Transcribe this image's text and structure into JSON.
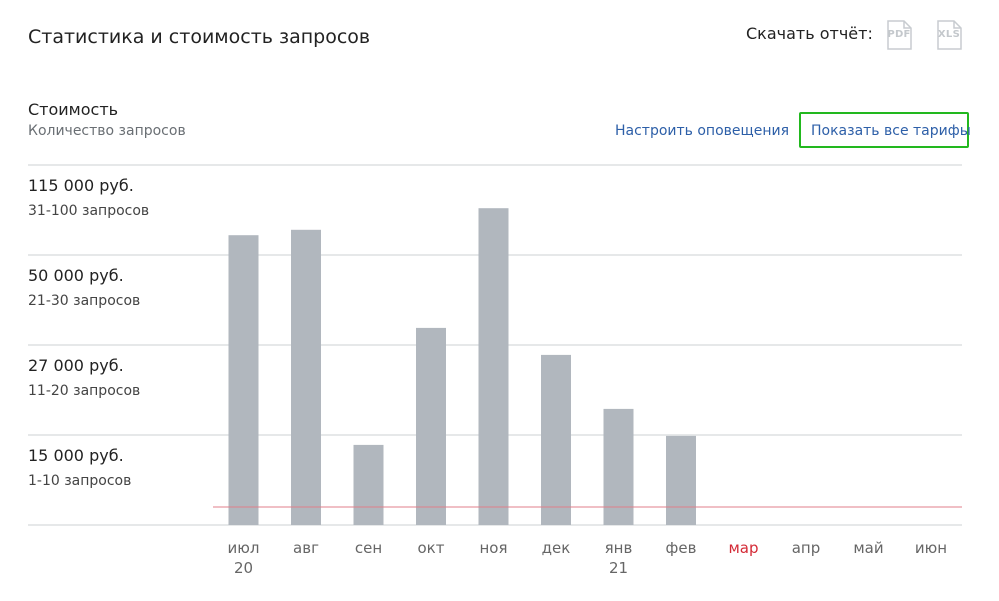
{
  "header": {
    "title": "Статистика и стоимость запросов",
    "download_label": "Скачать отчёт:",
    "pdf_label": "PDF",
    "xls_label": "XLS"
  },
  "section": {
    "heading": "Стоимость",
    "subheading": "Количество запросов",
    "alerts_link": "Настроить оповещения",
    "tariffs_link": "Показать все тарифы"
  },
  "tiers": [
    {
      "price": "115 000 руб.",
      "requests": "31-100 запросов"
    },
    {
      "price": "50 000 руб.",
      "requests": "21-30 запросов"
    },
    {
      "price": "27 000 руб.",
      "requests": "11-20 запросов"
    },
    {
      "price": "15 000 руб.",
      "requests": "1-10 запросов"
    }
  ],
  "colors": {
    "bar": "#b1b7be",
    "grid": "#d6d9dc",
    "threshold_line": "#e07f8b",
    "highlight_tick": "#d42a36",
    "link": "#2d5fa8",
    "highlight_box": "#22b81e"
  },
  "chart_data": {
    "type": "bar",
    "categories": [
      "июл",
      "авг",
      "сен",
      "окт",
      "ноя",
      "дек",
      "янв",
      "фев",
      "мар",
      "апр",
      "май",
      "июн"
    ],
    "year_labels": [
      {
        "index": 0,
        "text": "20"
      },
      {
        "index": 6,
        "text": "21"
      }
    ],
    "highlighted_category": "мар",
    "y_scale": "tier levels: 0, 1, 2, 3, 4 (grid lines), values in tier units",
    "ylim": [
      0,
      4
    ],
    "values": [
      3.22,
      3.28,
      0.89,
      2.19,
      3.52,
      1.89,
      1.29,
      0.99,
      null,
      null,
      null,
      null
    ],
    "threshold_value": 0.2,
    "grid": true
  }
}
